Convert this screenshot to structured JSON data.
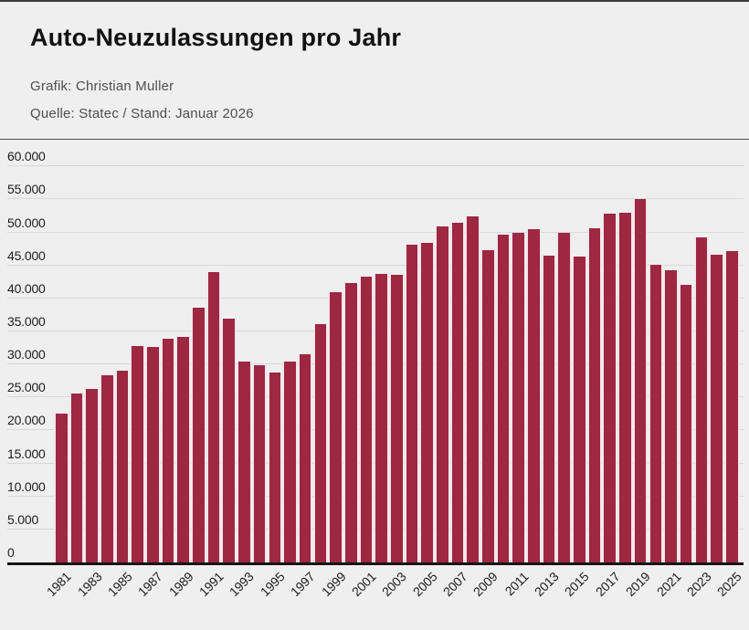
{
  "header": {
    "title": "Auto-Neuzulassungen pro Jahr",
    "credit": "Grafik: Christian Muller",
    "source": "Quelle: Statec / Stand: Januar 2026"
  },
  "chart_data": {
    "type": "bar",
    "title": "Auto-Neuzulassungen pro Jahr",
    "xlabel": "",
    "ylabel": "",
    "ylim": [
      0,
      60000
    ],
    "grid": "horizontal",
    "legend": "none",
    "bar_color": "#9e2742",
    "gridline_color": "#d8d8d9",
    "axis_color": "#151515",
    "categories": [
      1981,
      1982,
      1983,
      1984,
      1985,
      1986,
      1987,
      1988,
      1989,
      1990,
      1991,
      1992,
      1993,
      1994,
      1995,
      1996,
      1997,
      1998,
      1999,
      2000,
      2001,
      2002,
      2003,
      2004,
      2005,
      2006,
      2007,
      2008,
      2009,
      2010,
      2011,
      2012,
      2013,
      2014,
      2015,
      2016,
      2017,
      2018,
      2019,
      2020,
      2021,
      2022,
      2023,
      2024,
      2025
    ],
    "values": [
      22550,
      25600,
      26250,
      28350,
      29000,
      32800,
      32600,
      33900,
      34200,
      38600,
      44000,
      37000,
      30500,
      29900,
      28800,
      30450,
      31600,
      36150,
      40900,
      42400,
      43300,
      43650,
      43600,
      48100,
      48450,
      50900,
      51400,
      52500,
      47250,
      49650,
      49900,
      50450,
      46500,
      49900,
      46400,
      50700,
      52800,
      53000,
      55000,
      45100,
      44300,
      42000,
      49200,
      46650,
      47200
    ],
    "x_tick_labels": [
      "1981",
      "1983",
      "1985",
      "1987",
      "1989",
      "1991",
      "1993",
      "1995",
      "1997",
      "1999",
      "2001",
      "2003",
      "2005",
      "2007",
      "2009",
      "2011",
      "2013",
      "2015",
      "2017",
      "2019",
      "2021",
      "2023",
      "2025"
    ],
    "y_ticks": [
      0,
      5000,
      10000,
      15000,
      20000,
      25000,
      30000,
      35000,
      40000,
      45000,
      50000,
      55000,
      60000
    ],
    "y_tick_labels": [
      "0",
      "5.000",
      "10.000",
      "15.000",
      "20.000",
      "25.000",
      "30.000",
      "35.000",
      "40.000",
      "45.000",
      "50.000",
      "55.000",
      "60.000"
    ]
  }
}
